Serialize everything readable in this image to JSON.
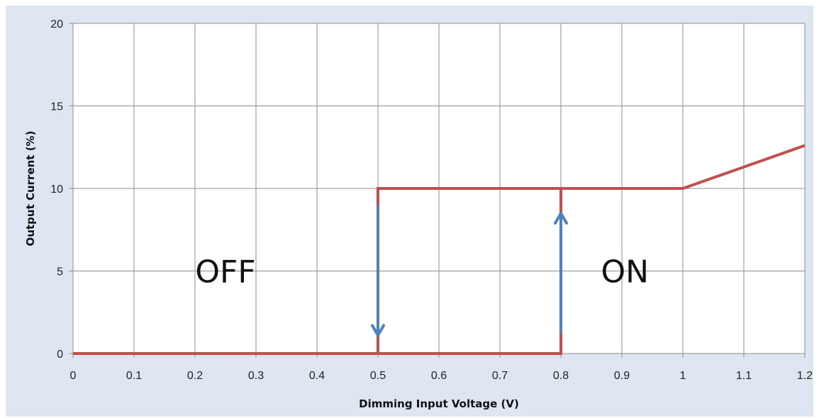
{
  "chart_data": {
    "type": "line",
    "xlabel": "Dimming Input Voltage (V)",
    "ylabel": "Output Current (%)",
    "xlim": [
      0,
      1.2
    ],
    "ylim": [
      0,
      20
    ],
    "x_ticks": [
      "0",
      "0.1",
      "0.2",
      "0.3",
      "0.4",
      "0.5",
      "0.6",
      "0.7",
      "0.8",
      "0.9",
      "1",
      "1.1",
      "1.2"
    ],
    "y_ticks": [
      "0",
      "5",
      "10",
      "15",
      "20"
    ],
    "grid": true,
    "series": [
      {
        "color": "#c0504d",
        "points": [
          [
            0,
            0
          ],
          [
            0.5,
            0
          ],
          [
            0.5,
            10
          ],
          [
            1.0,
            10
          ],
          [
            1.2,
            12.6
          ]
        ]
      },
      {
        "color": "#c0504d",
        "points": [
          [
            0.5,
            0
          ],
          [
            0.8,
            0
          ],
          [
            0.8,
            10
          ]
        ]
      }
    ],
    "arrows": [
      {
        "direction": "down",
        "x": 0.5,
        "y_from": 9,
        "y_to": 1.1,
        "color": "#4f81bd"
      },
      {
        "direction": "up",
        "x": 0.8,
        "y_from": 1.2,
        "y_to": 8.5,
        "color": "#4f81bd"
      }
    ],
    "annotations": [
      {
        "text": "OFF",
        "x": 0.25,
        "y": 5
      },
      {
        "text": "ON",
        "x": 0.905,
        "y": 5
      }
    ]
  }
}
